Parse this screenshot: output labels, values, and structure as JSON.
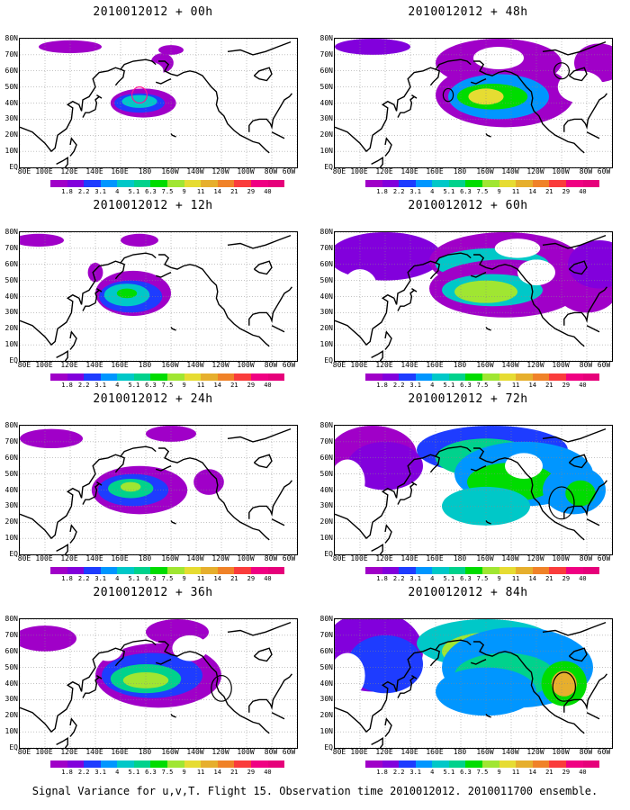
{
  "caption": "Signal Variance for u,v,T. Flight 15. Observation time 2010012012. 2010011700 ensemble.",
  "lat_labels": [
    "80N",
    "70N",
    "60N",
    "50N",
    "40N",
    "30N",
    "20N",
    "10N",
    "EQ"
  ],
  "lon_labels": [
    "80E",
    "100E",
    "120E",
    "140E",
    "160E",
    "180",
    "160W",
    "140W",
    "120W",
    "100W",
    "80W",
    "60W"
  ],
  "colorbar": {
    "labels": [
      "1.8",
      "2.2",
      "3.1",
      "4",
      "5.1",
      "6.3",
      "7.5",
      "9",
      "11",
      "14",
      "21",
      "29",
      "40"
    ],
    "colors": [
      "#a000c8",
      "#8200dc",
      "#1e3cff",
      "#0096ff",
      "#00c8c8",
      "#00d28c",
      "#00dc00",
      "#a0e632",
      "#e6dc32",
      "#e6af2d",
      "#f08228",
      "#fa3c3c",
      "#f00082",
      "#e6007a"
    ]
  },
  "panels": [
    {
      "title": "2010012012 + 00h",
      "col": 0,
      "row": 0
    },
    {
      "title": "2010012012 + 12h",
      "col": 0,
      "row": 1
    },
    {
      "title": "2010012012 + 24h",
      "col": 0,
      "row": 2
    },
    {
      "title": "2010012012 + 36h",
      "col": 0,
      "row": 3
    },
    {
      "title": "2010012012 + 48h",
      "col": 1,
      "row": 0
    },
    {
      "title": "2010012012 + 60h",
      "col": 1,
      "row": 1
    },
    {
      "title": "2010012012 + 72h",
      "col": 1,
      "row": 2
    },
    {
      "title": "2010012012 + 84h",
      "col": 1,
      "row": 3
    }
  ]
}
